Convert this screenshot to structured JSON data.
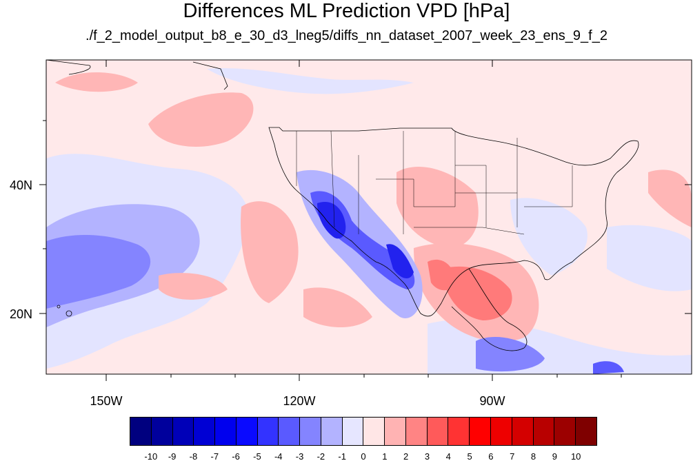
{
  "title": "Differences ML Prediction VPD [hPa]",
  "subtitle": "./f_2_model_output_b8_e_30_d3_lneg5/diffs_nn_dataset_2007_week_23_ens_9_f_2",
  "axes": {
    "lat_labels": [
      "40N",
      "20N"
    ],
    "lon_labels": [
      "150W",
      "120W",
      "90W"
    ]
  },
  "colorbar": {
    "labels": [
      "-10",
      "-9",
      "-8",
      "-7",
      "-6",
      "-5",
      "-4",
      "-3",
      "-2",
      "-1",
      "0",
      "1",
      "2",
      "3",
      "4",
      "5",
      "6",
      "7",
      "8",
      "9",
      "10"
    ],
    "colors": [
      "#00007f",
      "#00009c",
      "#0000b8",
      "#0000d4",
      "#0000ee",
      "#0a0aff",
      "#3333ff",
      "#5a5aff",
      "#8484ff",
      "#b3b3ff",
      "#e6e6ff",
      "#ffe6e6",
      "#ffb3b3",
      "#ff8484",
      "#ff5a5a",
      "#ff3333",
      "#ff0000",
      "#ee0000",
      "#d40000",
      "#b80000",
      "#9c0000",
      "#7f0000"
    ]
  },
  "colors": {
    "background_field": "#ffe9ea",
    "light_blue": "#e3e4ff",
    "mid_blue": "#b3b3ff",
    "blue": "#8484ff",
    "strong_blue": "#3333ff",
    "light_red": "#ffb6b6",
    "red": "#ff7a7a"
  }
}
